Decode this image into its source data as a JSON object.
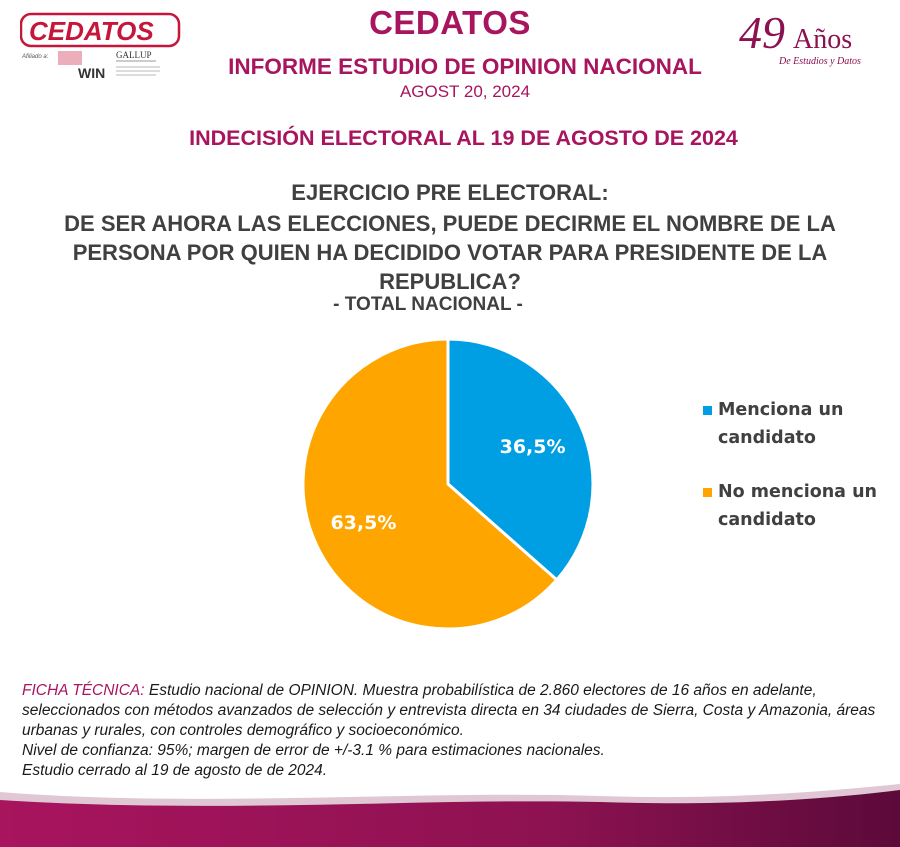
{
  "header": {
    "logo_text": "CEDATOS",
    "affiliation_label": "Afiliado a:",
    "win_text": "WIN",
    "gallup_text": "GALLUP",
    "brand_title": "CEDATOS",
    "report_title": "INFORME ESTUDIO DE OPINION NACIONAL",
    "report_date": "AGOST 20, 2024",
    "anniversary_number": "49",
    "anniversary_word": "Años",
    "anniversary_subtitle": "De Estudios y Datos"
  },
  "subtitle": "INDECISIÓN ELECTORAL AL 19 DE AGOSTO DE 2024",
  "colors": {
    "brand": "#a8145e",
    "series_menciona": "#009fe3",
    "series_no_menciona": "#ffa500",
    "wave_dark": "#5c0a3a"
  },
  "chart_data": {
    "type": "pie",
    "title_lines": [
      "EJERCICIO PRE ELECTORAL:",
      "DE SER AHORA LAS ELECCIONES, PUEDE DECIRME EL NOMBRE DE LA PERSONA POR QUIEN HA DECIDIDO VOTAR PARA PRESIDENTE DE LA REPUBLICA?"
    ],
    "subtitle": "- TOTAL NACIONAL -",
    "slices": [
      {
        "label": "Menciona un candidato",
        "value": 36.5,
        "display": "36,5%",
        "color": "#009fe3"
      },
      {
        "label": "No menciona un candidato",
        "value": 63.5,
        "display": "63,5%",
        "color": "#ffa500"
      }
    ],
    "legend_position": "right"
  },
  "ficha": {
    "label": "FICHA TÉCNICA:",
    "text": " Estudio nacional de OPINION. Muestra probabilística de 2.860 electores de 16 años en adelante,  seleccionados con métodos avanzados de selección y entrevista directa en 34 ciudades de Sierra, Costa y Amazonia, áreas urbanas y rurales, con controles demográfico y socioeconómico.",
    "confidence": "Nivel de confianza: 95%; margen de error de +/-3.1 % para estimaciones nacionales.",
    "closing": "Estudio cerrado al 19 de agosto de de 2024."
  }
}
